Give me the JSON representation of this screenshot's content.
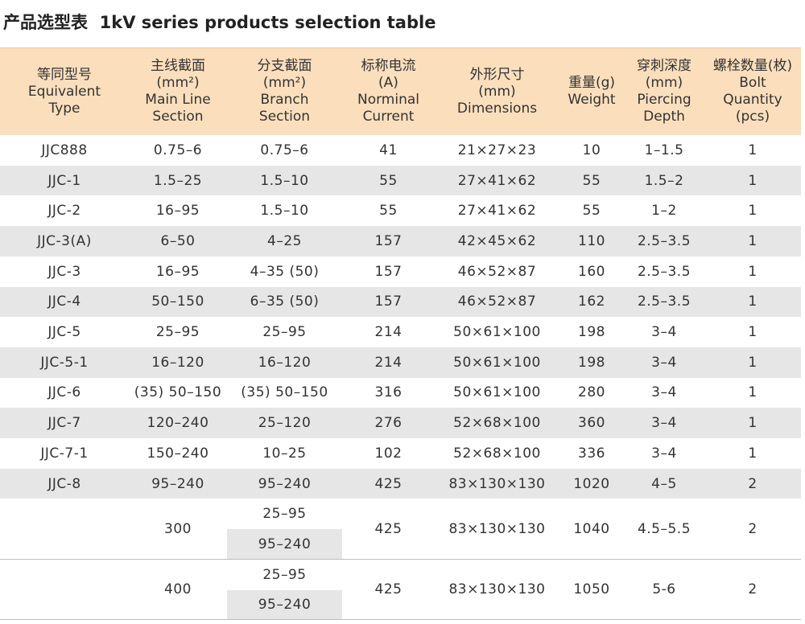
{
  "title": "产品选型表  1kV series products selection table",
  "table": {
    "header": [
      [
        "等同型号",
        "Equivalent",
        "Type"
      ],
      [
        "主线截面",
        "(mm²)",
        "Main Line",
        "Section"
      ],
      [
        "分支截面",
        "(mm²)",
        "Branch",
        "Section"
      ],
      [
        "标称电流",
        "(A)",
        "Norminal",
        "Current"
      ],
      [
        "外形尺寸",
        "(mm)",
        "Dimensions"
      ],
      [
        "重量(g)",
        "Weight"
      ],
      [
        "穿刺深度",
        "(mm)",
        "Piercing",
        "Depth"
      ],
      [
        "螺栓数量(枚)",
        "Bolt",
        "Quantity",
        "(pcs)"
      ]
    ],
    "rows": [
      [
        "JJC888",
        "0.75–6",
        "0.75–6",
        "41",
        "21×27×23",
        "10",
        "1–1.5",
        "1"
      ],
      [
        "JJC-1",
        "1.5–25",
        "1.5–10",
        "55",
        "27×41×62",
        "55",
        "1.5–2",
        "1"
      ],
      [
        "JJC-2",
        "16–95",
        "1.5–10",
        "55",
        "27×41×62",
        "55",
        "1–2",
        "1"
      ],
      [
        "JJC-3(A)",
        "6–50",
        "4–25",
        "157",
        "42×45×62",
        "110",
        "2.5–3.5",
        "1"
      ],
      [
        "JJC-3",
        "16–95",
        "4–35 (50)",
        "157",
        "46×52×87",
        "160",
        "2.5–3.5",
        "1"
      ],
      [
        "JJC-4",
        "50–150",
        "6–35 (50)",
        "157",
        "46×52×87",
        "162",
        "2.5–3.5",
        "1"
      ],
      [
        "JJC-5",
        "25–95",
        "25–95",
        "214",
        "50×61×100",
        "198",
        "3–4",
        "1"
      ],
      [
        "JJC-5-1",
        "16–120",
        "16–120",
        "214",
        "50×61×100",
        "198",
        "3–4",
        "1"
      ],
      [
        "JJC-6",
        "(35) 50–150",
        "(35) 50–150",
        "316",
        "50×61×100",
        "280",
        "3–4",
        "1"
      ],
      [
        "JJC-7",
        "120–240",
        "25–120",
        "276",
        "52×68×100",
        "360",
        "3–4",
        "1"
      ],
      [
        "JJC-7-1",
        "150–240",
        "10–25",
        "102",
        "52×68×100",
        "336",
        "3–4",
        "1"
      ],
      [
        "JJC-8",
        "95–240",
        "95–240",
        "425",
        "83×130×130",
        "1020",
        "4–5",
        "2"
      ],
      [
        null,
        "300",
        [
          "25–95",
          "95–240"
        ],
        "425",
        "83×130×130",
        "1040",
        "4.5–5.5",
        "2"
      ],
      [
        null,
        "400",
        [
          "25–95",
          "95–240"
        ],
        "425",
        "83×130×130",
        "1050",
        "5-6",
        "2"
      ]
    ]
  }
}
